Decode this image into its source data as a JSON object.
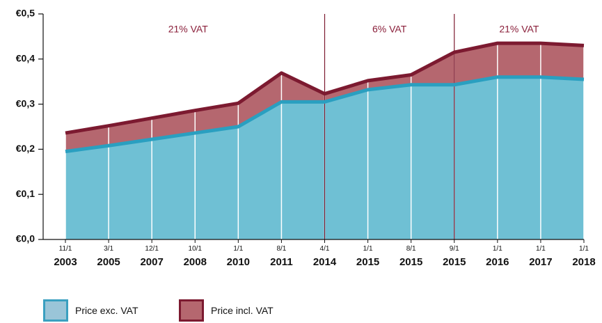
{
  "chart_data": {
    "type": "area",
    "categories": [
      "11/1\n2003",
      "3/1\n2005",
      "12/1\n2007",
      "10/1\n2008",
      "1/1\n2010",
      "8/1\n2011",
      "4/1\n2014",
      "1/1\n2015",
      "8/1\n2015",
      "9/1\n2015",
      "1/1\n2016",
      "1/1\n2017",
      "1/1\n2018"
    ],
    "series": [
      {
        "name": "Price exc. VAT",
        "color": "#2a9fc0",
        "fill_color": "#6fc0d4",
        "values": [
          0.195,
          0.208,
          0.222,
          0.236,
          0.25,
          0.305,
          0.305,
          0.332,
          0.343,
          0.343,
          0.36,
          0.36,
          0.355
        ]
      },
      {
        "name": "Price incl. VAT",
        "color": "#7c1a30",
        "fill_color": "#b5676f",
        "values": [
          0.236,
          0.252,
          0.269,
          0.286,
          0.302,
          0.369,
          0.323,
          0.352,
          0.365,
          0.415,
          0.435,
          0.435,
          0.43
        ]
      }
    ],
    "annotations": [
      "21% VAT",
      "6% VAT",
      "21% VAT"
    ],
    "ylim": [
      0,
      0.5
    ],
    "yticks": [
      {
        "value": 0,
        "label": "€0,0"
      },
      {
        "value": 0.1,
        "label": "€0,1"
      },
      {
        "value": 0.2,
        "label": "€0,2"
      },
      {
        "value": 0.3,
        "label": "€0,3"
      },
      {
        "value": 0.4,
        "label": "€0,4"
      },
      {
        "value": 0.5,
        "label": "€0,5"
      }
    ]
  }
}
